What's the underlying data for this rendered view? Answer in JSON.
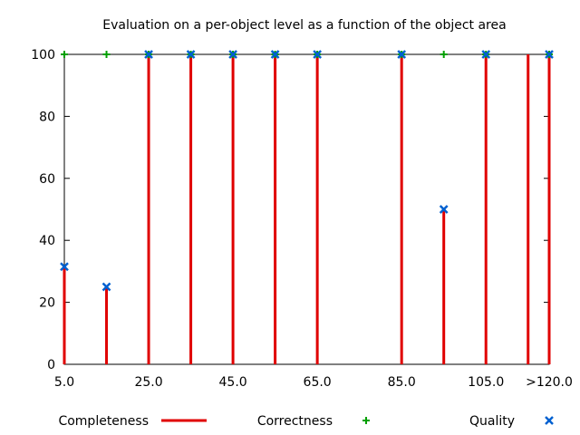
{
  "chart_data": {
    "type": "scatter",
    "title": "Evaluation on a per-object level as a function of the object area",
    "xlabel": "",
    "ylabel": "",
    "xlim": [
      5,
      120
    ],
    "ylim": [
      0,
      100
    ],
    "x_ticks": [
      {
        "value": 5,
        "label": "5.0"
      },
      {
        "value": 25,
        "label": "25.0"
      },
      {
        "value": 45,
        "label": "45.0"
      },
      {
        "value": 65,
        "label": "65.0"
      },
      {
        "value": 85,
        "label": "85.0"
      },
      {
        "value": 105,
        "label": "105.0"
      },
      {
        "value": 120,
        "label": ">120.0"
      }
    ],
    "y_ticks": [
      0,
      20,
      40,
      60,
      80,
      100
    ],
    "x": [
      5,
      15,
      25,
      35,
      45,
      55,
      65,
      85,
      95,
      105,
      115,
      120
    ],
    "series": [
      {
        "name": "Completeness",
        "style": "impulses",
        "color": "#e00000",
        "values": [
          31.5,
          25,
          100,
          100,
          100,
          100,
          100,
          100,
          50,
          100,
          100,
          100
        ]
      },
      {
        "name": "Correctness",
        "style": "plus",
        "color": "#00a000",
        "values": [
          100,
          100,
          100,
          100,
          100,
          100,
          100,
          100,
          100,
          100,
          null,
          100
        ]
      },
      {
        "name": "Quality",
        "style": "cross",
        "color": "#0060d0",
        "values": [
          31.5,
          25,
          100,
          100,
          100,
          100,
          100,
          100,
          50,
          100,
          null,
          100
        ]
      }
    ],
    "legend_position": "bottom",
    "grid": false
  }
}
